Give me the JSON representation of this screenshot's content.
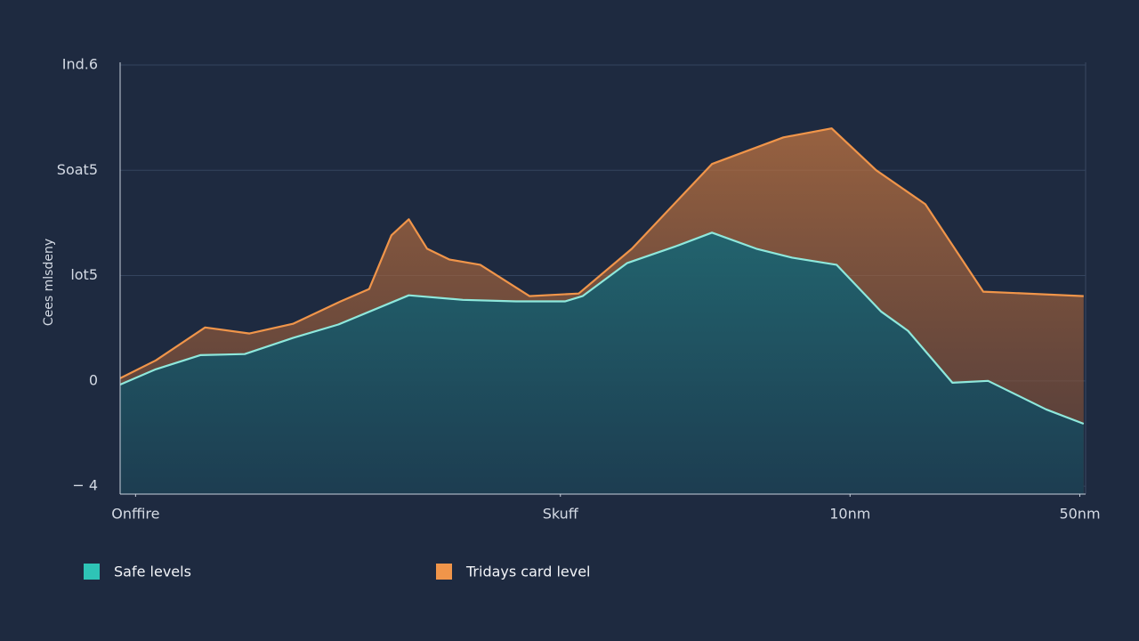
{
  "chart_data": {
    "type": "area",
    "ylabel": "Cees mlsdeny",
    "xlim": [
      0,
      100
    ],
    "ylim": [
      -4.3,
      12.1
    ],
    "xticks": [
      {
        "value": 1.6,
        "label": "Onffire"
      },
      {
        "value": 45.6,
        "label": "Skuff"
      },
      {
        "value": 75.6,
        "label": "10nm"
      },
      {
        "value": 99.4,
        "label": "50nm"
      }
    ],
    "yticks": [
      {
        "value": -4,
        "label": "− 4"
      },
      0,
      {
        "value": 4,
        "label": "lot5"
      },
      {
        "value": 8,
        "label": "Soat5"
      },
      {
        "value": 12,
        "label": "Ind.6"
      }
    ],
    "grid": true,
    "series": [
      {
        "name": "Tridays card level",
        "color": "#f0954a",
        "x": [
          0,
          3.7,
          8.8,
          13.4,
          17.9,
          22.6,
          25.8,
          28.1,
          29.9,
          31.8,
          34.1,
          37.3,
          42.4,
          47.5,
          53.0,
          61.3,
          68.7,
          73.7,
          78.3,
          83.4,
          89.4,
          99.8
        ],
        "values": [
          0.1,
          0.78,
          2.03,
          1.8,
          2.17,
          2.98,
          3.49,
          5.53,
          6.14,
          5.02,
          4.61,
          4.41,
          3.22,
          3.32,
          5.02,
          8.24,
          9.25,
          9.59,
          8.0,
          6.71,
          3.39,
          3.22
        ]
      },
      {
        "name": "Safe levels",
        "color": "#2ec4b6",
        "x": [
          0,
          3.7,
          8.3,
          12.9,
          17.9,
          22.6,
          29.9,
          35.5,
          41.0,
          46.1,
          47.9,
          52.5,
          57.6,
          61.3,
          65.9,
          69.6,
          74.2,
          78.8,
          81.6,
          86.2,
          89.9,
          95.9,
          99.8
        ],
        "values": [
          -0.14,
          0.44,
          0.98,
          1.02,
          1.63,
          2.14,
          3.25,
          3.08,
          3.02,
          3.02,
          3.22,
          4.47,
          5.12,
          5.63,
          5.02,
          4.68,
          4.41,
          2.64,
          1.9,
          -0.07,
          0,
          -1.08,
          -1.63
        ]
      }
    ]
  }
}
